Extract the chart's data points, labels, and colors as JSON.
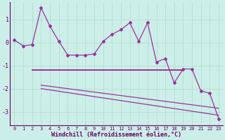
{
  "background_color": "#cceee8",
  "grid_color": "#aaddcc",
  "line_color": "#993399",
  "title": "Windchill (Refroidissement éolien,°C)",
  "xlim": [
    -0.5,
    23.5
  ],
  "ylim": [
    -3.6,
    1.75
  ],
  "yticks": [
    -3,
    -2,
    -1,
    0,
    1
  ],
  "xticks": [
    0,
    1,
    2,
    3,
    4,
    5,
    6,
    7,
    8,
    9,
    10,
    11,
    12,
    13,
    14,
    15,
    16,
    17,
    18,
    19,
    20,
    21,
    22,
    23
  ],
  "series1_x": [
    0,
    1,
    2,
    3,
    4,
    5,
    6,
    7,
    8,
    9,
    10,
    11,
    12,
    13,
    14,
    15,
    16,
    17,
    18,
    19,
    20,
    21,
    22,
    23
  ],
  "series1_y": [
    0.1,
    -0.15,
    -0.1,
    1.5,
    0.7,
    0.05,
    -0.55,
    -0.55,
    -0.55,
    -0.5,
    0.05,
    0.35,
    0.55,
    0.85,
    0.05,
    0.85,
    -0.85,
    -0.7,
    -1.75,
    -1.15,
    -1.15,
    -2.1,
    -2.2,
    -3.3
  ],
  "series2_x": [
    2,
    19
  ],
  "series2_y": [
    -1.2,
    -1.2
  ],
  "series3_x": [
    3,
    23
  ],
  "series3_y": [
    -1.85,
    -2.85
  ],
  "series4_x": [
    3,
    23
  ],
  "series4_y": [
    -2.0,
    -3.15
  ]
}
